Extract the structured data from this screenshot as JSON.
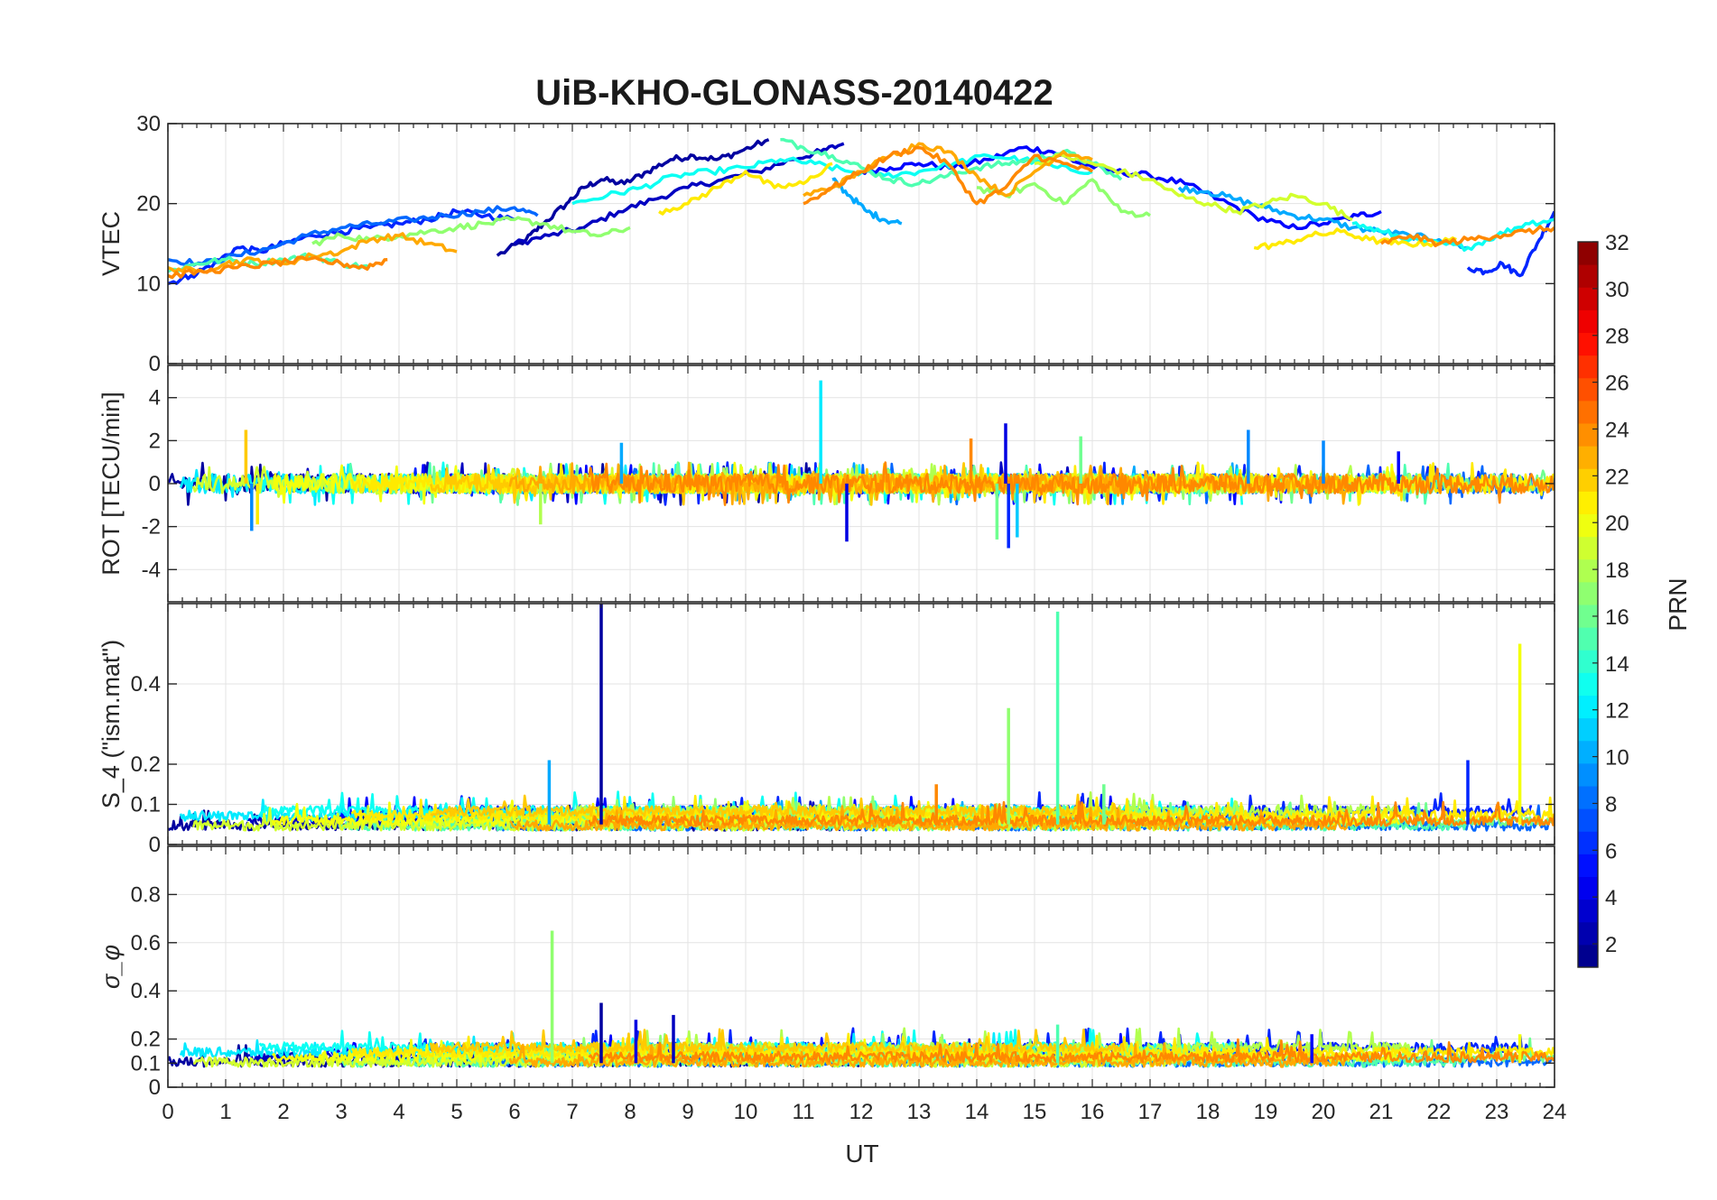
{
  "chart_data": {
    "type": "line",
    "title": "UiB-KHO-GLONASS-20140422",
    "xlabel": "UT",
    "xlim": [
      0,
      24
    ],
    "x_ticks": [
      "0",
      "1",
      "2",
      "3",
      "4",
      "5",
      "6",
      "7",
      "8",
      "9",
      "10",
      "11",
      "12",
      "13",
      "14",
      "15",
      "16",
      "17",
      "18",
      "19",
      "20",
      "21",
      "22",
      "23",
      "24"
    ],
    "grid": true,
    "panels": [
      {
        "name": "vtec",
        "ylabel": "VTEC",
        "ylim": [
          0,
          30
        ],
        "y_ticks": [
          0,
          10,
          20,
          30
        ],
        "y_tick_labels": [
          "0",
          "10",
          "20",
          "30"
        ],
        "series": [
          {
            "prn": 2,
            "x": [
              5.7,
              6.2,
              6.5,
              6.9,
              7.2,
              7.5,
              7.9,
              8.3,
              8.7,
              9.1,
              9.5,
              9.9,
              10.4
            ],
            "y": [
              13.5,
              15.5,
              17.5,
              20,
              22,
              23,
              22.5,
              24,
              25.5,
              26,
              25.5,
              26.5,
              28
            ]
          },
          {
            "prn": 3,
            "x": [
              6.0,
              6.6,
              7.2,
              7.8,
              8.4,
              9.0,
              9.6,
              10.2,
              10.8,
              11.3,
              11.7
            ],
            "y": [
              15,
              16,
              17,
              19,
              20.5,
              22,
              23,
              24,
              25.5,
              26.5,
              27.5
            ]
          },
          {
            "prn": 5,
            "x": [
              12.0,
              12.5,
              13.0,
              13.6,
              14.2,
              14.8,
              15.3,
              15.8,
              16.4,
              17.0,
              17.6,
              18.2,
              18.8,
              19.4,
              20.0,
              20.6,
              21.0
            ],
            "y": [
              24,
              24.5,
              25,
              24.5,
              25.5,
              27,
              26.5,
              25,
              24,
              23.5,
              22.5,
              20.5,
              18.5,
              17,
              17.5,
              18.5,
              19
            ]
          },
          {
            "prn": 6,
            "x": [
              0.0,
              0.4,
              0.8,
              1.2,
              1.6,
              2.0,
              2.5,
              3.0,
              3.5,
              4.0,
              4.5,
              5.0,
              5.5,
              6.0
            ],
            "y": [
              10,
              11,
              12.5,
              14.5,
              14,
              15,
              16,
              16.5,
              17,
              17.5,
              18,
              19,
              18.5,
              18
            ]
          },
          {
            "prn": 6,
            "x": [
              22.5,
              22.8,
              23.1,
              23.4,
              23.7,
              24.0
            ],
            "y": [
              12,
              11.5,
              12.5,
              11,
              15,
              19
            ]
          },
          {
            "prn": 8,
            "x": [
              0.0,
              0.6,
              1.2,
              1.8,
              2.4,
              3.0,
              3.6,
              4.2,
              4.8,
              5.4,
              6.0,
              6.4
            ],
            "y": [
              13,
              12.5,
              13.5,
              14.5,
              16,
              17,
              17.5,
              18,
              18.5,
              19,
              19.5,
              18.5
            ]
          },
          {
            "prn": 10,
            "x": [
              11.5,
              11.8,
              12.1,
              12.4,
              12.7
            ],
            "y": [
              23,
              21,
              19,
              18,
              17.5
            ]
          },
          {
            "prn": 10,
            "x": [
              17.5,
              18.0,
              18.5,
              19.0,
              19.5,
              20.0,
              20.5,
              21.0,
              21.5,
              22.0,
              22.5
            ],
            "y": [
              22,
              21.5,
              20.5,
              19.5,
              18.5,
              18,
              17,
              16.5,
              16,
              15.5,
              14.5
            ]
          },
          {
            "prn": 13,
            "x": [
              7.0,
              7.6,
              8.2,
              8.8,
              9.4,
              10.0,
              10.6,
              11.2,
              11.8,
              12.4,
              13.0,
              13.6,
              14.2,
              14.8,
              15.4,
              16.0
            ],
            "y": [
              20,
              21,
              22,
              23.5,
              24,
              24.5,
              25.5,
              25,
              24,
              23.5,
              24,
              25,
              26,
              25.5,
              24.5,
              24
            ]
          },
          {
            "prn": 13,
            "x": [
              20.5,
              21.0,
              21.5,
              22.0,
              22.5,
              23.0,
              23.5,
              24.0
            ],
            "y": [
              17.5,
              16.5,
              15.5,
              15,
              14.5,
              16,
              17.5,
              18
            ]
          },
          {
            "prn": 15,
            "x": [
              0.0,
              0.5,
              1.0,
              1.5,
              2.0,
              2.5,
              3.0,
              3.5
            ],
            "y": [
              11.5,
              12.5,
              13,
              12.5,
              13,
              13.5,
              12.5,
              12
            ]
          },
          {
            "prn": 15,
            "x": [
              10.6,
              11.0,
              11.5,
              12.0,
              12.5,
              13.0,
              13.5,
              14.0,
              14.5,
              15.0,
              15.5,
              16.0,
              16.5
            ],
            "y": [
              28,
              27,
              26,
              24.5,
              23,
              22.5,
              23.5,
              24.5,
              25,
              25.5,
              26.5,
              25,
              23
            ]
          },
          {
            "prn": 17,
            "x": [
              2.5,
              3.0,
              3.5,
              4.0,
              4.5,
              5.0,
              5.5,
              6.0,
              6.5,
              7.0,
              7.5,
              8.0
            ],
            "y": [
              15,
              16,
              15.5,
              16,
              16.5,
              17,
              17.5,
              18,
              17.5,
              16.5,
              16,
              17
            ]
          },
          {
            "prn": 17,
            "x": [
              14.0,
              14.5,
              15.0,
              15.5,
              16.0,
              16.5,
              17.0
            ],
            "y": [
              22,
              21,
              22.5,
              20,
              23,
              19,
              18.5
            ]
          },
          {
            "prn": 19,
            "x": [
              15.0,
              15.5,
              16.0,
              16.5,
              17.0,
              17.5,
              18.0,
              18.5,
              19.0,
              19.5,
              20.0,
              20.5
            ],
            "y": [
              25,
              26,
              25,
              24,
              23,
              21,
              20,
              19,
              20,
              21,
              20,
              18
            ]
          },
          {
            "prn": 21,
            "x": [
              8.5,
              9.0,
              9.5,
              10.0,
              10.5,
              11.0,
              11.5
            ],
            "y": [
              19,
              20,
              22,
              24,
              22,
              22.5,
              25
            ]
          },
          {
            "prn": 21,
            "x": [
              18.8,
              19.3,
              19.8,
              20.3,
              20.8,
              21.3,
              21.8,
              22.3
            ],
            "y": [
              14.5,
              15,
              16,
              16.5,
              15.5,
              15,
              15,
              15.5
            ]
          },
          {
            "prn": 23,
            "x": [
              0.0,
              0.5,
              1.0,
              1.5,
              2.0,
              2.5,
              3.0,
              3.5,
              4.0,
              4.5,
              5.0
            ],
            "y": [
              12,
              11.5,
              12.5,
              13,
              12.5,
              13.5,
              14,
              15.5,
              16,
              15,
              14
            ]
          },
          {
            "prn": 23,
            "x": [
              11.0,
              11.5,
              12.0,
              12.5,
              13.0,
              13.5,
              14.0,
              14.5,
              15.0,
              15.5,
              16.0
            ],
            "y": [
              21,
              22,
              24,
              26,
              27.5,
              26.5,
              23.5,
              21,
              24,
              26.5,
              25.5
            ]
          },
          {
            "prn": 24,
            "x": [
              0.0,
              0.6,
              1.2,
              1.8,
              2.4,
              3.0,
              3.4,
              3.8
            ],
            "y": [
              11,
              11.5,
              12,
              12.5,
              13,
              12.5,
              12,
              13
            ]
          },
          {
            "prn": 24,
            "x": [
              11.0,
              11.5,
              12.0,
              12.5,
              13.0,
              13.5,
              14.0,
              14.5,
              15.0,
              15.5,
              16.0
            ],
            "y": [
              20,
              22,
              24,
              26,
              27,
              25,
              20,
              22,
              26,
              25,
              24
            ]
          },
          {
            "prn": 24,
            "x": [
              21.0,
              21.5,
              22.0,
              22.5,
              23.0,
              23.5,
              24.0
            ],
            "y": [
              15,
              16,
              15,
              15.5,
              16,
              16.5,
              17
            ]
          }
        ]
      },
      {
        "name": "rot",
        "ylabel": "ROT [TECU/min]",
        "ylim": [
          -5.5,
          5.5
        ],
        "y_ticks": [
          -4,
          -2,
          0,
          2,
          4
        ],
        "y_tick_labels": [
          "-4",
          "-2",
          "0",
          "2",
          "4"
        ],
        "noise_amplitude": 0.45,
        "spikes": [
          {
            "x": 1.35,
            "y": 2.5,
            "prn": 22
          },
          {
            "x": 1.45,
            "y": -2.2,
            "prn": 9
          },
          {
            "x": 1.55,
            "y": -1.9,
            "prn": 21
          },
          {
            "x": 6.45,
            "y": -1.9,
            "prn": 18
          },
          {
            "x": 7.85,
            "y": 1.9,
            "prn": 10
          },
          {
            "x": 11.3,
            "y": 4.8,
            "prn": 12
          },
          {
            "x": 11.75,
            "y": -2.7,
            "prn": 4
          },
          {
            "x": 13.9,
            "y": 2.1,
            "prn": 24
          },
          {
            "x": 14.35,
            "y": -2.6,
            "prn": 16
          },
          {
            "x": 14.55,
            "y": -3.0,
            "prn": 6
          },
          {
            "x": 14.5,
            "y": 2.8,
            "prn": 4
          },
          {
            "x": 14.7,
            "y": -2.5,
            "prn": 11
          },
          {
            "x": 15.8,
            "y": 2.2,
            "prn": 16
          },
          {
            "x": 18.7,
            "y": 2.5,
            "prn": 9
          },
          {
            "x": 20.0,
            "y": 2.0,
            "prn": 9
          },
          {
            "x": 21.3,
            "y": 1.5,
            "prn": 5
          }
        ]
      },
      {
        "name": "s4",
        "ylabel": "S_4 (\"ism.mat\")",
        "ylim": [
          0,
          0.6
        ],
        "y_ticks": [
          0,
          0.1,
          0.2,
          0.4
        ],
        "y_tick_labels": [
          "0",
          "0.1",
          "0.2",
          "0.4"
        ],
        "baseline": 0.05,
        "spikes": [
          {
            "x": 7.5,
            "y": 0.6,
            "prn": 2
          },
          {
            "x": 6.6,
            "y": 0.21,
            "prn": 10
          },
          {
            "x": 14.55,
            "y": 0.34,
            "prn": 17
          },
          {
            "x": 15.4,
            "y": 0.58,
            "prn": 15
          },
          {
            "x": 22.5,
            "y": 0.21,
            "prn": 6
          },
          {
            "x": 23.4,
            "y": 0.5,
            "prn": 20
          },
          {
            "x": 13.3,
            "y": 0.15,
            "prn": 24
          },
          {
            "x": 16.2,
            "y": 0.15,
            "prn": 16
          }
        ]
      },
      {
        "name": "sigma_phi",
        "ylabel": "σ_φ",
        "ylim": [
          0,
          1
        ],
        "y_ticks": [
          0,
          0.1,
          0.2,
          0.4,
          0.6,
          0.8
        ],
        "y_tick_labels": [
          "0",
          "0.1",
          "0.2",
          "0.4",
          "0.6",
          "0.8"
        ],
        "baseline": 0.1,
        "spikes": [
          {
            "x": 6.65,
            "y": 0.65,
            "prn": 17
          },
          {
            "x": 7.5,
            "y": 0.35,
            "prn": 2
          },
          {
            "x": 8.1,
            "y": 0.28,
            "prn": 4
          },
          {
            "x": 8.75,
            "y": 0.3,
            "prn": 3
          },
          {
            "x": 15.4,
            "y": 0.26,
            "prn": 15
          },
          {
            "x": 19.8,
            "y": 0.22,
            "prn": 5
          },
          {
            "x": 23.4,
            "y": 0.22,
            "prn": 20
          }
        ]
      }
    ],
    "colorbar": {
      "label": "PRN",
      "range": [
        1,
        32
      ],
      "ticks": [
        2,
        4,
        6,
        8,
        10,
        12,
        14,
        16,
        18,
        20,
        22,
        24,
        26,
        28,
        30,
        32
      ],
      "tick_labels": [
        "2",
        "4",
        "6",
        "8",
        "10",
        "12",
        "14",
        "16",
        "18",
        "20",
        "22",
        "24",
        "26",
        "28",
        "30",
        "32"
      ],
      "colormap": "jet"
    }
  }
}
